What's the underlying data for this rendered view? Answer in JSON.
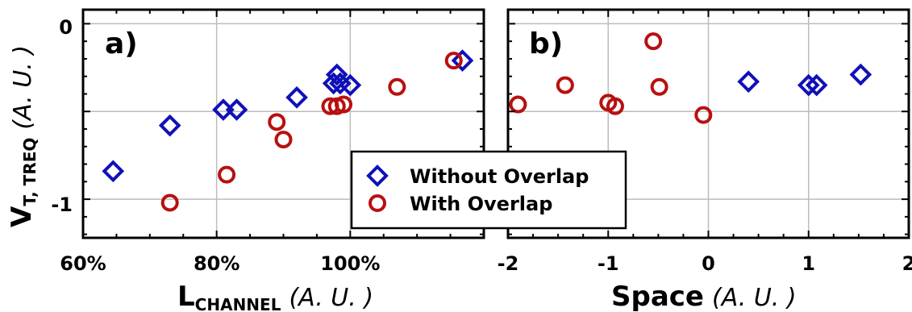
{
  "colors": {
    "without": "#1010b8",
    "with": "#b81010",
    "grid": "#bdbdbd",
    "frame": "#000000"
  },
  "legend": {
    "without_label": "Without Overlap",
    "with_label": "With Overlap",
    "without_marker": "diamond",
    "with_marker": "circle"
  },
  "y_axis": {
    "main": "V",
    "sub": "T, TREQ",
    "unit": "(A. U. )",
    "ticks": [
      "0",
      "-1"
    ]
  },
  "chart_data": [
    {
      "type": "scatter",
      "panel_label": "a)",
      "xlabel_main": "L",
      "xlabel_sub": "CHANNEL",
      "xlabel_unit": "(A. U. )",
      "xlim": [
        0.6,
        1.2
      ],
      "ylim": [
        -1.22,
        0.08
      ],
      "x_ticks": [
        0.6,
        0.8,
        1.0
      ],
      "x_tick_labels": [
        "60%",
        "80%",
        "100%"
      ],
      "y_ticks": [
        0,
        -0.5,
        -1
      ],
      "y_tick_labels": [
        "0",
        "",
        "-1"
      ],
      "grid": true,
      "series": [
        {
          "name": "Without Overlap",
          "marker": "diamond",
          "x": [
            0.645,
            0.73,
            0.81,
            0.83,
            0.92,
            0.975,
            0.98,
            0.985,
            1.0,
            1.168
          ],
          "y": [
            -0.84,
            -0.58,
            -0.49,
            -0.49,
            -0.42,
            -0.34,
            -0.29,
            -0.34,
            -0.35,
            -0.21
          ]
        },
        {
          "name": "With Overlap",
          "marker": "circle",
          "x": [
            0.73,
            0.815,
            0.89,
            0.9,
            0.97,
            0.98,
            0.99,
            1.07,
            1.155
          ],
          "y": [
            -1.02,
            -0.86,
            -0.56,
            -0.66,
            -0.47,
            -0.47,
            -0.46,
            -0.36,
            -0.21
          ]
        }
      ]
    },
    {
      "type": "scatter",
      "panel_label": "b)",
      "xlabel_main": "Space",
      "xlabel_unit": "(A. U. )",
      "xlim": [
        -2,
        2
      ],
      "ylim": [
        -1.22,
        0.08
      ],
      "x_ticks": [
        -2,
        -1,
        0,
        1,
        2
      ],
      "x_tick_labels": [
        "-2",
        "-1",
        "0",
        "1",
        "2"
      ],
      "y_ticks": [
        0,
        -0.5,
        -1
      ],
      "grid": true,
      "legend_position": "lower-left",
      "series": [
        {
          "name": "Without Overlap",
          "marker": "diamond",
          "x": [
            0.4,
            1.0,
            1.08,
            1.52
          ],
          "y": [
            -0.33,
            -0.35,
            -0.35,
            -0.29
          ]
        },
        {
          "name": "With Overlap",
          "marker": "circle",
          "x": [
            -1.9,
            -1.43,
            -1.0,
            -0.93,
            -0.55,
            -0.49,
            -0.05
          ],
          "y": [
            -0.46,
            -0.35,
            -0.45,
            -0.47,
            -0.1,
            -0.36,
            -0.52
          ]
        }
      ]
    }
  ]
}
